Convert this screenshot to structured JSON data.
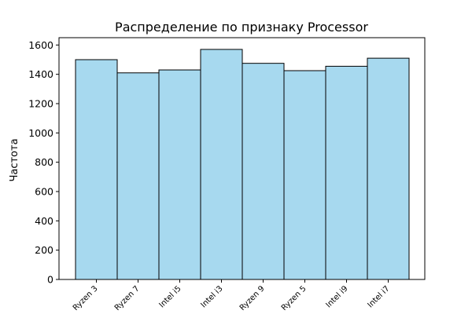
{
  "chart_data": {
    "type": "bar",
    "title": "Распределение по признаку Processor",
    "xlabel": "",
    "ylabel": "Частота",
    "categories": [
      "Ryzen 3",
      "Ryzen 7",
      "Intel i5",
      "Intel i3",
      "Ryzen 9",
      "Ryzen 5",
      "Intel i9",
      "Intel i7"
    ],
    "values": [
      1500,
      1410,
      1430,
      1570,
      1475,
      1425,
      1455,
      1510
    ],
    "yticks": [
      0,
      200,
      400,
      600,
      800,
      1000,
      1200,
      1400,
      1600
    ],
    "ylim": [
      0,
      1650
    ],
    "grid": false,
    "bar_color": "#a7d9ef",
    "edge_color": "#000000"
  }
}
